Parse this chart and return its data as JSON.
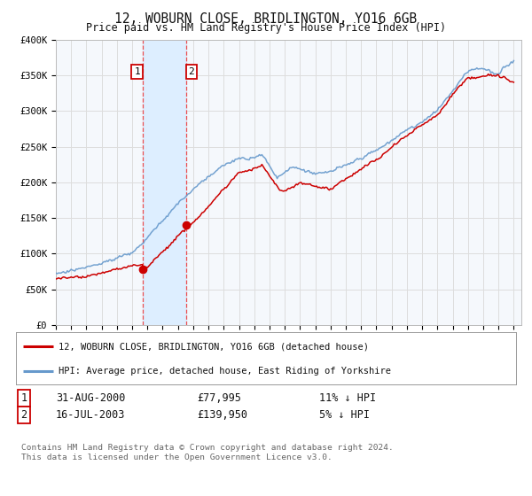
{
  "title": "12, WOBURN CLOSE, BRIDLINGTON, YO16 6GB",
  "subtitle": "Price paid vs. HM Land Registry's House Price Index (HPI)",
  "legend_line1": "12, WOBURN CLOSE, BRIDLINGTON, YO16 6GB (detached house)",
  "legend_line2": "HPI: Average price, detached house, East Riding of Yorkshire",
  "transaction1_date": "31-AUG-2000",
  "transaction1_price": "£77,995",
  "transaction1_hpi": "11% ↓ HPI",
  "transaction1_year": 2000.67,
  "transaction1_value": 77995,
  "transaction2_date": "16-JUL-2003",
  "transaction2_price": "£139,950",
  "transaction2_hpi": "5% ↓ HPI",
  "transaction2_year": 2003.54,
  "transaction2_value": 139950,
  "footer": "Contains HM Land Registry data © Crown copyright and database right 2024.\nThis data is licensed under the Open Government Licence v3.0.",
  "property_color": "#cc0000",
  "hpi_color": "#6699cc",
  "background_color": "#ffffff",
  "plot_bg_color": "#f5f8fc",
  "grid_color": "#dddddd",
  "ylim": [
    0,
    400000
  ],
  "xlim_start": 1995,
  "xlim_end": 2025.5,
  "yticks": [
    0,
    50000,
    100000,
    150000,
    200000,
    250000,
    300000,
    350000,
    400000
  ],
  "ytick_labels": [
    "£0",
    "£50K",
    "£100K",
    "£150K",
    "£200K",
    "£250K",
    "£300K",
    "£350K",
    "£400K"
  ],
  "xticks": [
    1995,
    1996,
    1997,
    1998,
    1999,
    2000,
    2001,
    2002,
    2003,
    2004,
    2005,
    2006,
    2007,
    2008,
    2009,
    2010,
    2011,
    2012,
    2013,
    2014,
    2015,
    2016,
    2017,
    2018,
    2019,
    2020,
    2021,
    2022,
    2023,
    2024,
    2025
  ],
  "highlight_color": "#ddeeff",
  "dashed_color": "#ee3333"
}
